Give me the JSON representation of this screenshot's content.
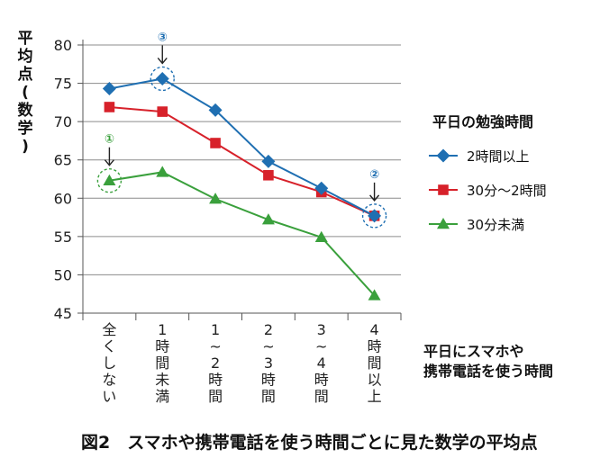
{
  "chart_data": {
    "type": "line",
    "ylabel": "平均点(数学)",
    "xlabel": [
      "平日にスマホや",
      "携帯電話を使う時間"
    ],
    "ylim": [
      45,
      80
    ],
    "yticks": [
      45,
      50,
      55,
      60,
      65,
      70,
      75,
      80
    ],
    "categories": [
      "全くしない",
      "1時間未満",
      "1〜2時間",
      "2〜3時間",
      "3〜4時間",
      "4時間以上"
    ],
    "legend_title": "平日の勉強時間",
    "legend_position": "right",
    "grid": "horizontal",
    "series": [
      {
        "name": "2時間以上",
        "color": "#1f6fb2",
        "marker": "diamond",
        "values": [
          74.3,
          75.6,
          71.5,
          64.8,
          61.3,
          57.7
        ]
      },
      {
        "name": "30分〜2時間",
        "color": "#d7212a",
        "marker": "square",
        "values": [
          71.9,
          71.3,
          67.2,
          63.0,
          60.8,
          57.7
        ]
      },
      {
        "name": "30分未満",
        "color": "#3aa03c",
        "marker": "triangle",
        "values": [
          62.3,
          63.4,
          59.9,
          57.2,
          54.9,
          47.3
        ]
      }
    ],
    "annotations": [
      {
        "label": "①",
        "category_index": 0,
        "value": 62.3,
        "color": "#3aa03c"
      },
      {
        "label": "③",
        "category_index": 1,
        "value": 75.6,
        "color": "#1f6fb2"
      },
      {
        "label": "②",
        "category_index": 5,
        "value": 57.7,
        "color": "#1f6fb2"
      }
    ],
    "caption": "図2　スマホや携帯電話を使う時間ごとに見た数学の平均点"
  }
}
